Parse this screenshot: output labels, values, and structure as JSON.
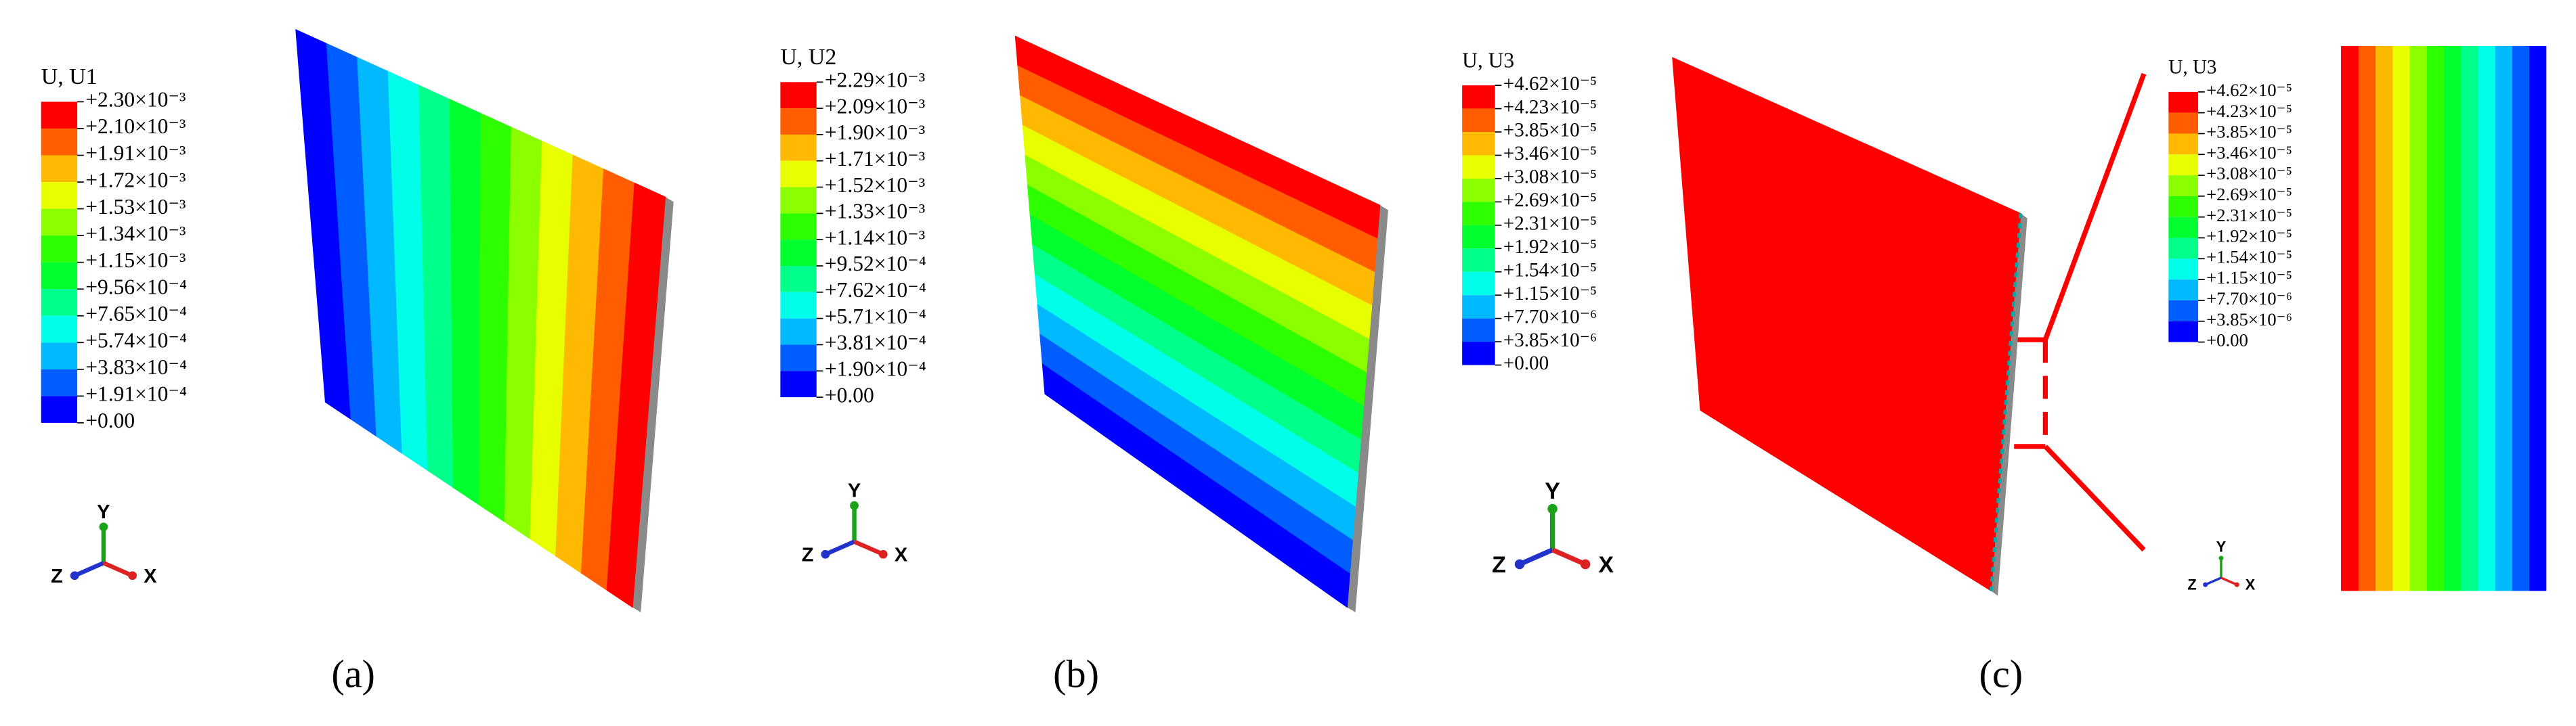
{
  "panels": [
    {
      "legend_title": "U, U1",
      "legend_labels": [
        "+2.30×10⁻³",
        "+2.10×10⁻³",
        "+1.91×10⁻³",
        "+1.72×10⁻³",
        "+1.53×10⁻³",
        "+1.34×10⁻³",
        "+1.15×10⁻³",
        "+9.56×10⁻⁴",
        "+7.65×10⁻⁴",
        "+5.74×10⁻⁴",
        "+3.83×10⁻⁴",
        "+1.91×10⁻⁴",
        "+0.00"
      ],
      "axes": {
        "y": "Y",
        "z": "Z",
        "x": "X"
      },
      "caption": "(a)"
    },
    {
      "legend_title": "U, U2",
      "legend_labels": [
        "+2.29×10⁻³",
        "+2.09×10⁻³",
        "+1.90×10⁻³",
        "+1.71×10⁻³",
        "+1.52×10⁻³",
        "+1.33×10⁻³",
        "+1.14×10⁻³",
        "+9.52×10⁻⁴",
        "+7.62×10⁻⁴",
        "+5.71×10⁻⁴",
        "+3.81×10⁻⁴",
        "+1.90×10⁻⁴",
        "+0.00"
      ],
      "axes": {
        "y": "Y",
        "z": "Z",
        "x": "X"
      },
      "caption": "(b)"
    },
    {
      "legend_title": "U, U3",
      "legend_labels": [
        "+4.62×10⁻⁵",
        "+4.23×10⁻⁵",
        "+3.85×10⁻⁵",
        "+3.46×10⁻⁵",
        "+3.08×10⁻⁵",
        "+2.69×10⁻⁵",
        "+2.31×10⁻⁵",
        "+1.92×10⁻⁵",
        "+1.54×10⁻⁵",
        "+1.15×10⁻⁵",
        "+7.70×10⁻⁶",
        "+3.85×10⁻⁶",
        "+0.00"
      ],
      "axes": {
        "y": "Y",
        "z": "Z",
        "x": "X"
      },
      "caption": "(c)"
    }
  ],
  "inset": {
    "legend_title": "U, U3",
    "legend_labels": [
      "+4.62×10⁻⁵",
      "+4.23×10⁻⁵",
      "+3.85×10⁻⁵",
      "+3.46×10⁻⁵",
      "+3.08×10⁻⁵",
      "+2.69×10⁻⁵",
      "+2.31×10⁻⁵",
      "+1.92×10⁻⁵",
      "+1.54×10⁻⁵",
      "+1.15×10⁻⁵",
      "+7.70×10⁻⁶",
      "+3.85×10⁻⁶",
      "+0.00"
    ],
    "axes": {
      "y": "Y",
      "z": "Z",
      "x": "X"
    }
  }
}
